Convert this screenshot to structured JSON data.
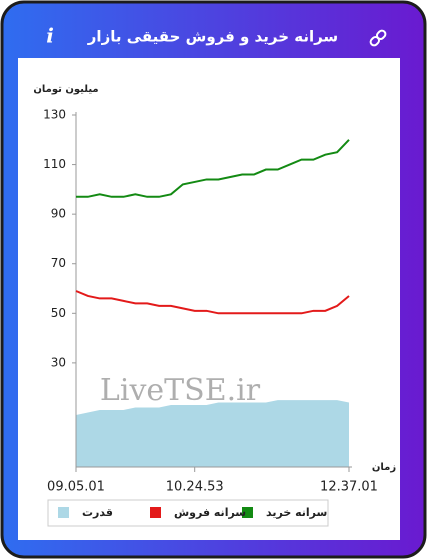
{
  "header": {
    "title": "سرانه خرید و فروش حقیقی بازار",
    "info": "i"
  },
  "chart_data": {
    "type": "line",
    "y_label": "میلیون تومان",
    "x_label": "زمان",
    "watermark": "LiveTSE.ir",
    "categories": [
      "09.05.01",
      null,
      null,
      null,
      null,
      null,
      null,
      null,
      null,
      null,
      "10.24.53",
      null,
      null,
      null,
      null,
      null,
      null,
      null,
      null,
      null,
      null,
      null,
      null,
      "12.37.01"
    ],
    "ylim": [
      -12,
      130
    ],
    "yticks": [
      30,
      50,
      70,
      90,
      110,
      130
    ],
    "series": [
      {
        "name": "سرانه خرید",
        "color": "#138a13",
        "kind": "line",
        "values": [
          97,
          97,
          98,
          97,
          97,
          98,
          97,
          97,
          98,
          102,
          103,
          104,
          104,
          105,
          106,
          106,
          108,
          108,
          110,
          112,
          112,
          114,
          115,
          120
        ]
      },
      {
        "name": "سرانه فروش",
        "color": "#e31a1a",
        "kind": "line",
        "values": [
          59,
          57,
          56,
          56,
          55,
          54,
          54,
          53,
          53,
          52,
          51,
          51,
          50,
          50,
          50,
          50,
          50,
          50,
          50,
          50,
          51,
          51,
          53,
          57
        ]
      },
      {
        "name": "قدرت",
        "color": "#add8e6",
        "kind": "area",
        "values": [
          9,
          10,
          11,
          11,
          11,
          12,
          12,
          12,
          13,
          13,
          13,
          13,
          14,
          14,
          14,
          14,
          14,
          15,
          15,
          15,
          15,
          15,
          15,
          14
        ]
      }
    ]
  }
}
